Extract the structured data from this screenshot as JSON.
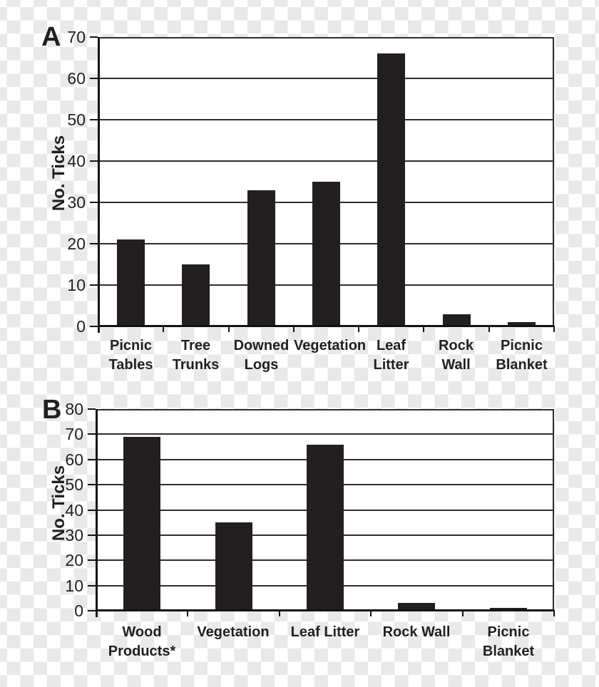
{
  "figure": {
    "panels": [
      {
        "letter": "A",
        "y_axis_label": "No. Ticks"
      },
      {
        "letter": "B",
        "y_axis_label": "No. Ticks"
      }
    ]
  },
  "colors": {
    "bar": "#231f20",
    "grid": "#302c2d",
    "axis": "#171314",
    "text": "#231f20",
    "plot_background": "#ffffff",
    "checker_light": "#ffffff",
    "checker_gray": "#e9e9e9"
  },
  "chart_data": [
    {
      "type": "bar",
      "panel": "A",
      "title": "",
      "xlabel": "",
      "ylabel": "No. Ticks",
      "ylim": [
        0,
        70
      ],
      "ytick_step": 10,
      "grid": true,
      "legend": "none",
      "categories": [
        [
          "Picnic",
          "Tables"
        ],
        [
          "Tree",
          "Trunks"
        ],
        [
          "Downed",
          "Logs"
        ],
        [
          "Vegetation"
        ],
        [
          "Leaf Litter"
        ],
        [
          "Rock Wall"
        ],
        [
          "Picnic",
          "Blanket"
        ]
      ],
      "values": [
        21,
        15,
        33,
        35,
        66,
        3,
        1
      ]
    },
    {
      "type": "bar",
      "panel": "B",
      "title": "",
      "xlabel": "",
      "ylabel": "No. Ticks",
      "ylim": [
        0,
        80
      ],
      "ytick_step": 10,
      "grid": true,
      "legend": "none",
      "categories": [
        [
          "Wood",
          "Products*"
        ],
        [
          "Vegetation"
        ],
        [
          "Leaf Litter"
        ],
        [
          "Rock Wall"
        ],
        [
          "Picnic",
          "Blanket"
        ]
      ],
      "values": [
        69,
        35,
        66,
        3,
        1
      ]
    }
  ]
}
